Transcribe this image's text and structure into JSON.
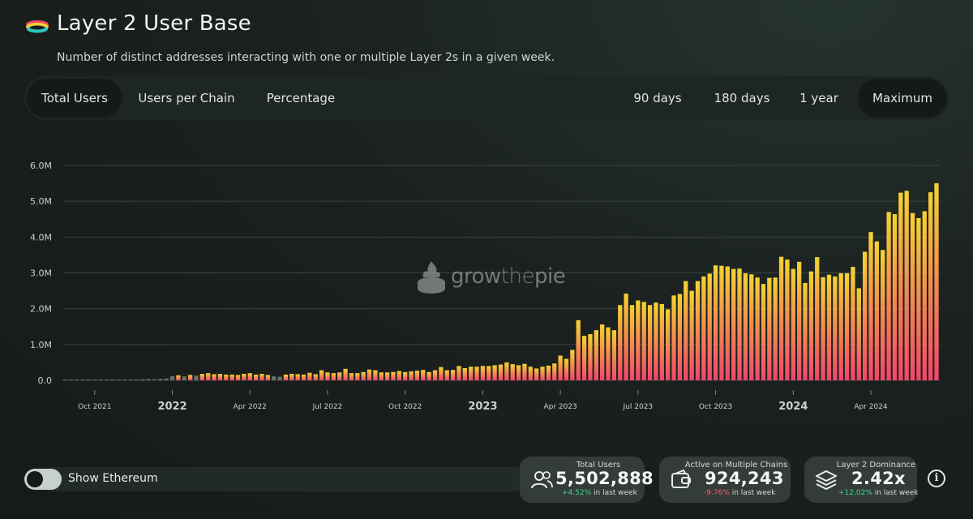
{
  "header": {
    "title": "Layer 2 User Base",
    "subtitle": "Number of distinct addresses interacting with one or multiple Layer 2s in a given week."
  },
  "tabs": {
    "left": [
      "Total Users",
      "Users per Chain",
      "Percentage"
    ],
    "right": [
      "90 days",
      "180 days",
      "1 year",
      "Maximum"
    ],
    "active_left": "Total Users",
    "active_right": "Maximum"
  },
  "watermark": {
    "part1": "grow",
    "part2": "the",
    "part3": "pie"
  },
  "toggle": {
    "label": "Show Ethereum",
    "on": false
  },
  "kpis": [
    {
      "label": "Total Users",
      "value": "5,502,888",
      "change": "+4.52%",
      "change_suffix": " in last week",
      "icon": "users-icon"
    },
    {
      "label": "Active on Multiple Chains",
      "value": "924,243",
      "change": "-9.76%",
      "change_suffix": " in last week",
      "icon": "wallet-icon"
    },
    {
      "label": "Layer 2 Dominance",
      "value": "2.42x",
      "change": "+12.02%",
      "change_suffix": " in last week",
      "icon": "layers-icon"
    }
  ],
  "colors": {
    "bar_top": "#f5d231",
    "bar_bottom": "#f1466b",
    "grid": "#3a4240",
    "axis_text": "#c8d0cd"
  },
  "chart_data": {
    "type": "bar",
    "title": "Layer 2 User Base",
    "xlabel": "",
    "ylabel": "",
    "ylim": [
      0,
      6000000
    ],
    "yticks": [
      0,
      1000000,
      2000000,
      3000000,
      4000000,
      5000000,
      6000000
    ],
    "ytick_labels": [
      "0.0",
      "1.0M",
      "2.0M",
      "3.0M",
      "4.0M",
      "5.0M",
      "6.0M"
    ],
    "x_start_week": "2021-08-30",
    "x_tick_labels": [
      {
        "label": "Oct 2021",
        "week_index": 5,
        "bold": false
      },
      {
        "label": "2022",
        "week_index": 18,
        "bold": true
      },
      {
        "label": "Apr 2022",
        "week_index": 31,
        "bold": false
      },
      {
        "label": "Jul 2022",
        "week_index": 44,
        "bold": false
      },
      {
        "label": "Oct 2022",
        "week_index": 57,
        "bold": false
      },
      {
        "label": "2023",
        "week_index": 70,
        "bold": true
      },
      {
        "label": "Apr 2023",
        "week_index": 83,
        "bold": false
      },
      {
        "label": "Jul 2023",
        "week_index": 96,
        "bold": false
      },
      {
        "label": "Oct 2023",
        "week_index": 109,
        "bold": false
      },
      {
        "label": "2024",
        "week_index": 122,
        "bold": true
      },
      {
        "label": "Apr 2024",
        "week_index": 135,
        "bold": false
      }
    ],
    "values": [
      5000,
      5000,
      6000,
      6000,
      7000,
      8000,
      8000,
      9000,
      10000,
      11000,
      12000,
      14000,
      20000,
      30000,
      35000,
      30000,
      40000,
      50000,
      120000,
      140000,
      110000,
      150000,
      130000,
      180000,
      200000,
      170000,
      180000,
      160000,
      160000,
      150000,
      180000,
      200000,
      160000,
      180000,
      150000,
      110000,
      100000,
      160000,
      180000,
      170000,
      160000,
      210000,
      170000,
      280000,
      220000,
      200000,
      220000,
      320000,
      200000,
      200000,
      230000,
      300000,
      280000,
      220000,
      220000,
      230000,
      260000,
      230000,
      250000,
      270000,
      290000,
      230000,
      280000,
      370000,
      280000,
      290000,
      400000,
      340000,
      380000,
      380000,
      400000,
      400000,
      420000,
      440000,
      500000,
      450000,
      420000,
      460000,
      380000,
      330000,
      380000,
      410000,
      470000,
      690000,
      600000,
      850000,
      1680000,
      1240000,
      1290000,
      1400000,
      1560000,
      1480000,
      1400000,
      2100000,
      2420000,
      2100000,
      2230000,
      2190000,
      2100000,
      2170000,
      2130000,
      1980000,
      2370000,
      2410000,
      2770000,
      2500000,
      2770000,
      2900000,
      2980000,
      3210000,
      3200000,
      3180000,
      3110000,
      3120000,
      2990000,
      2960000,
      2870000,
      2690000,
      2860000,
      2870000,
      3450000,
      3370000,
      3110000,
      3310000,
      2720000,
      3040000,
      3440000,
      2880000,
      2950000,
      2900000,
      2990000,
      2990000,
      3170000,
      2570000,
      3590000,
      4140000,
      3880000,
      3640000,
      4700000,
      4640000,
      5240000,
      5290000,
      4670000,
      4530000,
      4720000,
      5250000,
      5503000
    ]
  }
}
